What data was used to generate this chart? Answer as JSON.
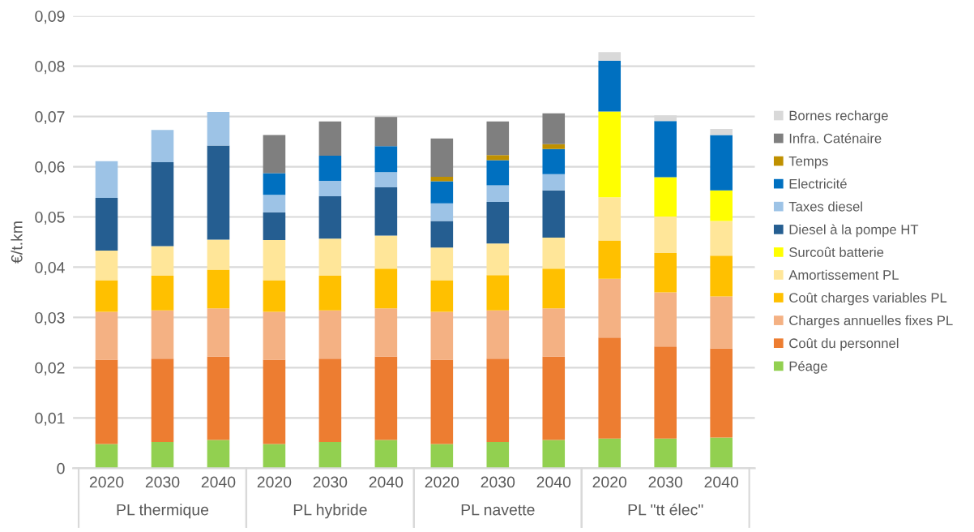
{
  "chart_data": {
    "type": "bar",
    "stacked": true,
    "ylabel": "€/t.km",
    "categories": [
      "2020",
      "2030",
      "2040",
      "2020",
      "2030",
      "2040",
      "2020",
      "2030",
      "2040",
      "2020",
      "2030",
      "2040"
    ],
    "annotations": [
      "PL thermique",
      "PL hybride",
      "PL navette",
      "PL \"tt élec\""
    ],
    "ylim": [
      0,
      0.09
    ],
    "yticks": [
      0,
      {
        "value": 0.01,
        "label": "0,01"
      },
      {
        "value": 0.02,
        "label": "0,02"
      },
      {
        "value": 0.03,
        "label": "0,03"
      },
      {
        "value": 0.04,
        "label": "0,04"
      },
      {
        "value": 0.05,
        "label": "0,05"
      },
      {
        "value": 0.06,
        "label": "0,06"
      },
      {
        "value": 0.07,
        "label": "0,07"
      },
      {
        "value": 0.08,
        "label": "0,08"
      },
      {
        "value": 0.09,
        "label": "0,09"
      }
    ],
    "grid": "y",
    "legend": "right",
    "series": [
      {
        "name": "Péage",
        "color": "#92d050",
        "values": [
          0.0048,
          0.0052,
          0.0056,
          0.0048,
          0.0052,
          0.0056,
          0.0048,
          0.0052,
          0.0056,
          0.0059,
          0.0059,
          0.0061
        ]
      },
      {
        "name": "Coût du personnel",
        "color": "#ed7d31",
        "values": [
          0.0168,
          0.0166,
          0.0166,
          0.0168,
          0.0166,
          0.0166,
          0.0168,
          0.0166,
          0.0166,
          0.0201,
          0.0183,
          0.0177
        ]
      },
      {
        "name": "Charges annuelles fixes PL",
        "color": "#f4b183",
        "values": [
          0.0095,
          0.0096,
          0.0096,
          0.0095,
          0.0096,
          0.0096,
          0.0095,
          0.0096,
          0.0096,
          0.0117,
          0.0108,
          0.0104
        ]
      },
      {
        "name": "Coût charges variables PL",
        "color": "#ffc000",
        "values": [
          0.0063,
          0.0069,
          0.0077,
          0.0063,
          0.0069,
          0.0079,
          0.0063,
          0.007,
          0.0079,
          0.0076,
          0.0078,
          0.0081
        ]
      },
      {
        "name": "Amortissement PL",
        "color": "#ffe699",
        "values": [
          0.0059,
          0.0059,
          0.006,
          0.008,
          0.0074,
          0.0066,
          0.0065,
          0.0063,
          0.0062,
          0.0086,
          0.0073,
          0.0069
        ]
      },
      {
        "name": "Surcoût batterie",
        "color": "#ffff00",
        "values": [
          null,
          null,
          null,
          null,
          null,
          null,
          null,
          null,
          null,
          0.0171,
          0.0078,
          0.0061
        ]
      },
      {
        "name": "Diesel à la pompe HT",
        "color": "#255e91",
        "values": [
          0.0105,
          0.0167,
          0.0187,
          0.0055,
          0.0084,
          0.0096,
          0.0053,
          0.0083,
          0.0094,
          null,
          null,
          null
        ]
      },
      {
        "name": "Taxes diesel",
        "color": "#9dc3e6",
        "values": [
          0.0073,
          0.0064,
          0.0067,
          0.0035,
          0.0031,
          0.003,
          0.0035,
          0.0033,
          0.0032,
          null,
          null,
          null
        ]
      },
      {
        "name": "Electricité",
        "color": "#0070c0",
        "values": [
          null,
          null,
          null,
          0.0043,
          0.005,
          0.0052,
          0.0044,
          0.005,
          0.005,
          0.0101,
          0.0112,
          0.011
        ]
      },
      {
        "name": "Temps",
        "color": "#bf9000",
        "values": [
          null,
          null,
          null,
          null,
          null,
          null,
          0.0009,
          0.001,
          0.001,
          null,
          null,
          null
        ]
      },
      {
        "name": "Infra. Caténaire",
        "color": "#7f7f7f",
        "values": [
          null,
          null,
          null,
          0.0076,
          0.0068,
          0.0058,
          0.0076,
          0.0067,
          0.0061,
          null,
          null,
          null
        ]
      },
      {
        "name": "Bornes recharge",
        "color": "#d9d9d9",
        "values": [
          null,
          null,
          null,
          null,
          null,
          null,
          null,
          null,
          null,
          0.0017,
          0.0011,
          0.0012
        ]
      }
    ]
  }
}
